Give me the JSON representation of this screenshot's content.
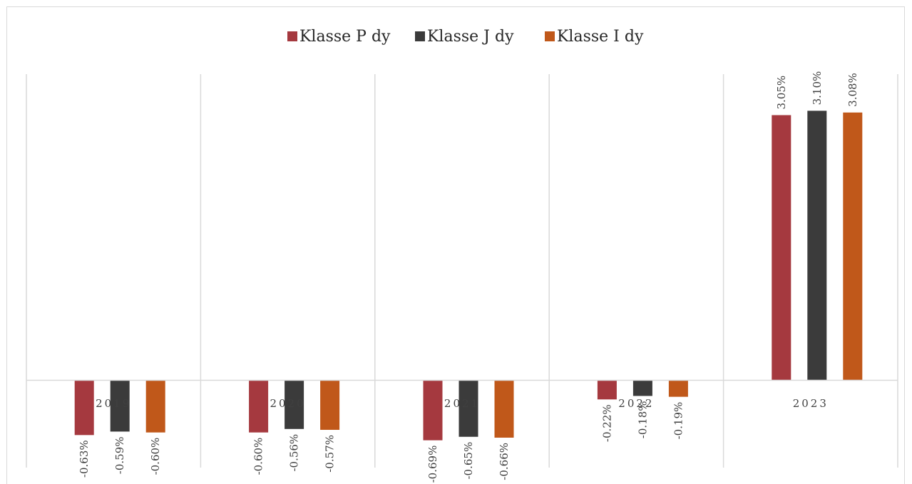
{
  "chart_data": {
    "type": "bar",
    "categories": [
      "2019",
      "2020",
      "2021",
      "2022",
      "2023"
    ],
    "series": [
      {
        "name": "Klasse P dy",
        "color": "#a5393f",
        "values": [
          -0.63,
          -0.6,
          -0.69,
          -0.22,
          3.05
        ],
        "labels": [
          "-0.63%",
          "-0.60%",
          "-0.69%",
          "-0.22%",
          "3.05%"
        ]
      },
      {
        "name": "Klasse J dy",
        "color": "#3b3b3b",
        "values": [
          -0.59,
          -0.56,
          -0.65,
          -0.18,
          3.1
        ],
        "labels": [
          "-0.59%",
          "-0.56%",
          "-0.65%",
          "-0.18%",
          "3.10%"
        ]
      },
      {
        "name": "Klasse I dy",
        "color": "#c0581a",
        "values": [
          -0.6,
          -0.57,
          -0.66,
          -0.19,
          3.08
        ],
        "labels": [
          "-0.60%",
          "-0.57%",
          "-0.66%",
          "-0.19%",
          "3.08%"
        ]
      }
    ],
    "value_unit": "%",
    "legend_position": "top",
    "grid": "vertical category separators"
  }
}
